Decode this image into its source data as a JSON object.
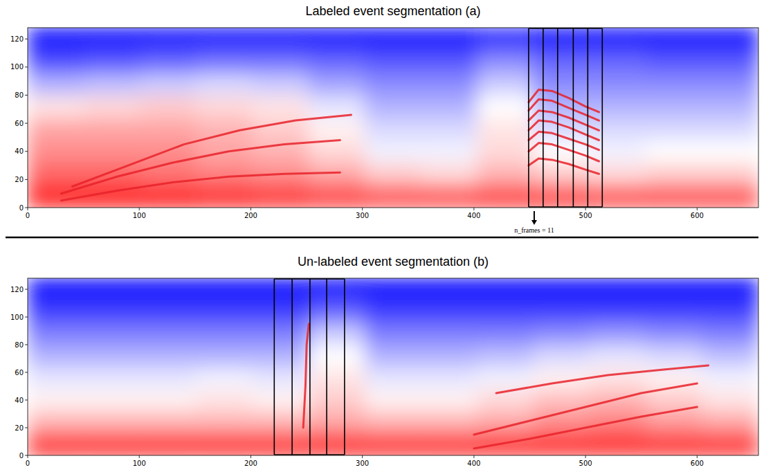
{
  "chart_data": [
    {
      "type": "heatmap",
      "title": "Labeled event segmentation (a)",
      "xlim": [
        0,
        655
      ],
      "xticks": [
        0,
        100,
        200,
        300,
        400,
        500,
        600
      ],
      "ylim": [
        0,
        128
      ],
      "yticks": [
        0,
        20,
        40,
        60,
        80,
        100,
        120
      ],
      "color_range": [
        -1,
        1
      ],
      "cells": [
        [
          0.9,
          0.9,
          0.9,
          0.85,
          0.8,
          0.75,
          0.7,
          0.7,
          0.75,
          0.75,
          0.7,
          0.7,
          0.7
        ],
        [
          0.6,
          0.6,
          0.55,
          0.5,
          0.45,
          0.35,
          0.2,
          0.15,
          0.3,
          0.2,
          0.15,
          0.2,
          0.2
        ],
        [
          0.45,
          0.45,
          0.45,
          0.35,
          0.3,
          0.15,
          -0.05,
          -0.05,
          0.15,
          0.0,
          -0.05,
          0.0,
          0.0
        ],
        [
          0.35,
          0.35,
          0.35,
          0.3,
          0.2,
          0.05,
          -0.15,
          -0.15,
          0.1,
          -0.15,
          -0.15,
          -0.15,
          -0.15
        ],
        [
          0.1,
          0.15,
          0.2,
          0.15,
          0.1,
          -0.1,
          -0.3,
          -0.3,
          0.0,
          -0.3,
          -0.3,
          -0.3,
          -0.3
        ],
        [
          -0.3,
          -0.25,
          -0.2,
          -0.15,
          -0.2,
          -0.35,
          -0.45,
          -0.45,
          -0.2,
          -0.45,
          -0.45,
          -0.45,
          -0.45
        ],
        [
          -0.7,
          -0.65,
          -0.6,
          -0.55,
          -0.55,
          -0.6,
          -0.65,
          -0.65,
          -0.45,
          -0.6,
          -0.6,
          -0.65,
          -0.65
        ],
        [
          -0.95,
          -0.95,
          -0.95,
          -0.95,
          -0.95,
          -0.95,
          -0.95,
          -0.95,
          -0.85,
          -0.95,
          -0.95,
          -0.95,
          -0.95
        ]
      ],
      "series": [
        {
          "type": "line",
          "color": "#e8222a",
          "x": [
            30,
            80,
            130,
            180,
            230,
            280
          ],
          "values": [
            5,
            12,
            18,
            22,
            24,
            25
          ]
        },
        {
          "type": "line",
          "color": "#e8222a",
          "x": [
            30,
            80,
            130,
            180,
            230,
            280
          ],
          "values": [
            10,
            22,
            32,
            40,
            45,
            48
          ]
        },
        {
          "type": "line",
          "color": "#e8222a",
          "x": [
            40,
            90,
            140,
            190,
            240,
            290
          ],
          "values": [
            15,
            30,
            45,
            55,
            62,
            66
          ]
        },
        {
          "type": "line",
          "color": "#e8222a",
          "x": [
            449,
            458,
            470,
            485,
            500,
            512
          ],
          "values": [
            30,
            35,
            34,
            31,
            27,
            24
          ]
        },
        {
          "type": "line",
          "color": "#e8222a",
          "x": [
            449,
            458,
            470,
            485,
            500,
            512
          ],
          "values": [
            40,
            46,
            45,
            41,
            37,
            33
          ]
        },
        {
          "type": "line",
          "color": "#e8222a",
          "x": [
            449,
            458,
            470,
            485,
            500,
            512
          ],
          "values": [
            48,
            54,
            53,
            49,
            45,
            41
          ]
        },
        {
          "type": "line",
          "color": "#e8222a",
          "x": [
            449,
            458,
            470,
            485,
            500,
            512
          ],
          "values": [
            55,
            62,
            61,
            57,
            52,
            48
          ]
        },
        {
          "type": "line",
          "color": "#e8222a",
          "x": [
            449,
            458,
            470,
            485,
            500,
            512
          ],
          "values": [
            62,
            69,
            68,
            64,
            59,
            55
          ]
        },
        {
          "type": "line",
          "color": "#e8222a",
          "x": [
            449,
            458,
            470,
            485,
            500,
            512
          ],
          "values": [
            69,
            77,
            76,
            71,
            66,
            62
          ]
        },
        {
          "type": "line",
          "color": "#e8222a",
          "x": [
            449,
            458,
            470,
            485,
            500,
            512
          ],
          "values": [
            75,
            84,
            83,
            78,
            72,
            68
          ]
        }
      ],
      "segments": [
        449,
        462,
        475,
        489,
        502,
        515
      ],
      "annotations": [
        {
          "text": "n_frames = 11",
          "x": 454
        }
      ]
    },
    {
      "type": "heatmap",
      "title": "Un-labeled event segmentation (b)",
      "xlim": [
        0,
        655
      ],
      "xticks": [
        0,
        100,
        200,
        300,
        400,
        500,
        600
      ],
      "ylim": [
        0,
        128
      ],
      "yticks": [
        0,
        20,
        40,
        60,
        80,
        100,
        120
      ],
      "color_range": [
        -1,
        1
      ],
      "cells": [
        [
          0.85,
          0.85,
          0.85,
          0.85,
          0.85,
          0.85,
          0.85,
          0.85,
          0.85,
          0.85,
          0.85,
          0.85,
          0.85
        ],
        [
          0.3,
          0.3,
          0.3,
          0.3,
          0.3,
          0.35,
          0.3,
          0.3,
          0.35,
          0.45,
          0.5,
          0.4,
          0.35
        ],
        [
          0.05,
          0.05,
          0.05,
          0.1,
          0.05,
          0.2,
          0.05,
          0.05,
          0.15,
          0.25,
          0.3,
          0.2,
          0.1
        ],
        [
          -0.1,
          -0.1,
          -0.1,
          -0.05,
          -0.1,
          0.1,
          -0.1,
          -0.1,
          -0.05,
          0.05,
          0.1,
          0.05,
          -0.05
        ],
        [
          -0.3,
          -0.3,
          -0.3,
          -0.3,
          -0.3,
          0.0,
          -0.3,
          -0.3,
          -0.25,
          -0.15,
          -0.1,
          -0.15,
          -0.25
        ],
        [
          -0.5,
          -0.5,
          -0.5,
          -0.5,
          -0.5,
          -0.2,
          -0.5,
          -0.5,
          -0.5,
          -0.45,
          -0.4,
          -0.45,
          -0.5
        ],
        [
          -0.75,
          -0.75,
          -0.75,
          -0.75,
          -0.75,
          -0.6,
          -0.75,
          -0.75,
          -0.75,
          -0.75,
          -0.75,
          -0.75,
          -0.75
        ],
        [
          -0.95,
          -0.95,
          -0.95,
          -0.95,
          -0.95,
          -0.95,
          -0.95,
          -0.95,
          -0.95,
          -0.95,
          -0.95,
          -0.95,
          -0.95
        ]
      ],
      "series": [
        {
          "type": "line",
          "color": "#e8222a",
          "x": [
            247,
            249,
            250,
            252
          ],
          "values": [
            20,
            50,
            80,
            95
          ]
        },
        {
          "type": "line",
          "color": "#e8222a",
          "x": [
            400,
            450,
            500,
            550,
            600
          ],
          "values": [
            5,
            12,
            20,
            28,
            35
          ]
        },
        {
          "type": "line",
          "color": "#e8222a",
          "x": [
            400,
            450,
            500,
            550,
            600
          ],
          "values": [
            15,
            25,
            35,
            45,
            52
          ]
        },
        {
          "type": "line",
          "color": "#e8222a",
          "x": [
            420,
            470,
            520,
            570,
            610
          ],
          "values": [
            45,
            52,
            58,
            62,
            65
          ]
        }
      ],
      "segments": [
        221,
        237,
        253,
        268,
        284
      ]
    }
  ]
}
